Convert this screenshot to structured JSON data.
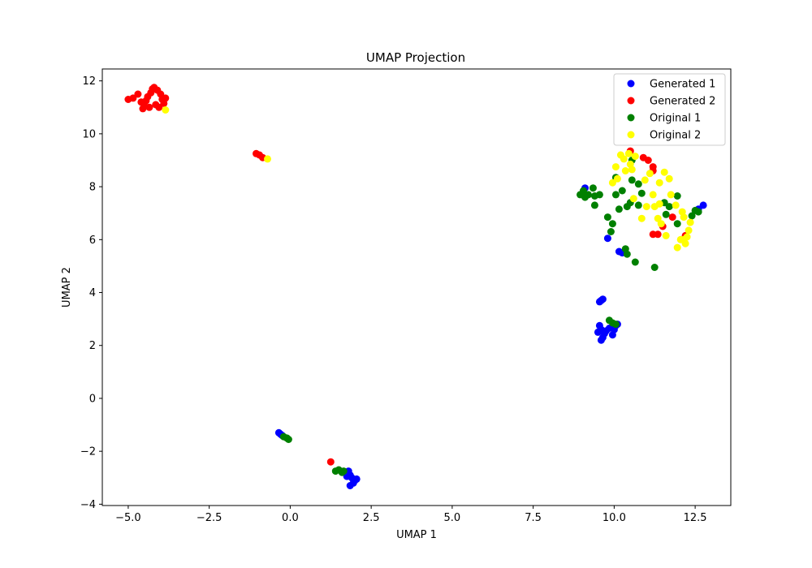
{
  "chart_data": {
    "type": "scatter",
    "title": "UMAP Projection",
    "xlabel": "UMAP 1",
    "ylabel": "UMAP 2",
    "xlim": [
      -5.8,
      13.6
    ],
    "ylim": [
      -4.05,
      12.45
    ],
    "xticks": [
      -5.0,
      -2.5,
      0.0,
      2.5,
      5.0,
      7.5,
      10.0,
      12.5
    ],
    "xtick_labels": [
      "−5.0",
      "−2.5",
      "0.0",
      "2.5",
      "5.0",
      "7.5",
      "10.0",
      "12.5"
    ],
    "yticks": [
      -4,
      -2,
      0,
      2,
      4,
      6,
      8,
      10,
      12
    ],
    "ytick_labels": [
      "−4",
      "−2",
      "0",
      "2",
      "4",
      "6",
      "8",
      "10",
      "12"
    ],
    "grid": false,
    "legend_position": "top-right",
    "series": [
      {
        "name": "Generated 1",
        "color": "#0000ff",
        "points": [
          [
            -0.35,
            -1.3
          ],
          [
            -0.3,
            -1.35
          ],
          [
            -0.25,
            -1.4
          ],
          [
            1.7,
            -2.8
          ],
          [
            1.8,
            -2.75
          ],
          [
            1.85,
            -2.9
          ],
          [
            1.9,
            -3.0
          ],
          [
            1.75,
            -2.95
          ],
          [
            2.0,
            -3.1
          ],
          [
            1.95,
            -3.2
          ],
          [
            1.85,
            -3.3
          ],
          [
            2.05,
            -3.05
          ],
          [
            1.8,
            -2.85
          ],
          [
            9.55,
            3.65
          ],
          [
            9.6,
            3.7
          ],
          [
            9.65,
            3.75
          ],
          [
            9.55,
            2.75
          ],
          [
            9.6,
            2.6
          ],
          [
            9.5,
            2.5
          ],
          [
            9.65,
            2.3
          ],
          [
            9.6,
            2.2
          ],
          [
            9.75,
            2.55
          ],
          [
            9.85,
            2.65
          ],
          [
            9.95,
            2.4
          ],
          [
            10.0,
            2.6
          ],
          [
            10.05,
            2.75
          ],
          [
            10.1,
            2.8
          ],
          [
            9.7,
            2.45
          ],
          [
            9.1,
            7.95
          ],
          [
            9.8,
            6.05
          ],
          [
            10.15,
            5.55
          ],
          [
            10.25,
            5.5
          ],
          [
            12.75,
            7.3
          ],
          [
            12.6,
            7.15
          ]
        ]
      },
      {
        "name": "Generated 2",
        "color": "#ff0000",
        "points": [
          [
            -5.0,
            11.3
          ],
          [
            -4.85,
            11.35
          ],
          [
            -4.7,
            11.5
          ],
          [
            -4.6,
            11.2
          ],
          [
            -4.5,
            11.05
          ],
          [
            -4.4,
            11.4
          ],
          [
            -4.3,
            11.55
          ],
          [
            -4.25,
            11.7
          ],
          [
            -4.2,
            11.75
          ],
          [
            -4.1,
            11.65
          ],
          [
            -4.0,
            11.5
          ],
          [
            -3.95,
            11.3
          ],
          [
            -3.85,
            11.35
          ],
          [
            -4.15,
            11.1
          ],
          [
            -4.35,
            11.0
          ],
          [
            -4.55,
            10.95
          ],
          [
            -4.45,
            11.25
          ],
          [
            -4.05,
            11.0
          ],
          [
            -3.9,
            11.15
          ],
          [
            -1.05,
            9.25
          ],
          [
            -0.95,
            9.2
          ],
          [
            -0.85,
            9.1
          ],
          [
            1.25,
            -2.4
          ],
          [
            10.5,
            9.35
          ],
          [
            10.9,
            9.1
          ],
          [
            11.05,
            9.0
          ],
          [
            11.2,
            8.75
          ],
          [
            11.2,
            8.6
          ],
          [
            11.2,
            6.2
          ],
          [
            11.35,
            6.2
          ],
          [
            11.5,
            6.5
          ],
          [
            11.8,
            6.85
          ],
          [
            12.2,
            6.15
          ]
        ]
      },
      {
        "name": "Original 1",
        "color": "#008000",
        "points": [
          [
            -0.2,
            -1.45
          ],
          [
            -0.1,
            -1.5
          ],
          [
            -0.05,
            -1.55
          ],
          [
            1.4,
            -2.75
          ],
          [
            1.5,
            -2.7
          ],
          [
            1.6,
            -2.8
          ],
          [
            1.65,
            -2.75
          ],
          [
            9.85,
            2.95
          ],
          [
            9.95,
            2.85
          ],
          [
            10.05,
            2.8
          ],
          [
            8.95,
            7.7
          ],
          [
            9.05,
            7.85
          ],
          [
            9.1,
            7.6
          ],
          [
            9.2,
            7.7
          ],
          [
            9.35,
            7.95
          ],
          [
            9.4,
            7.65
          ],
          [
            9.55,
            7.7
          ],
          [
            9.4,
            7.3
          ],
          [
            9.8,
            6.85
          ],
          [
            9.95,
            6.6
          ],
          [
            9.9,
            6.3
          ],
          [
            10.05,
            8.35
          ],
          [
            10.05,
            7.7
          ],
          [
            10.15,
            7.15
          ],
          [
            10.25,
            7.85
          ],
          [
            10.35,
            5.65
          ],
          [
            10.4,
            5.45
          ],
          [
            10.4,
            7.25
          ],
          [
            10.5,
            7.4
          ],
          [
            10.55,
            9.0
          ],
          [
            10.55,
            8.25
          ],
          [
            10.65,
            5.15
          ],
          [
            10.75,
            8.1
          ],
          [
            10.75,
            7.3
          ],
          [
            10.85,
            7.75
          ],
          [
            11.25,
            4.95
          ],
          [
            11.55,
            7.4
          ],
          [
            11.6,
            6.95
          ],
          [
            11.7,
            7.25
          ],
          [
            11.95,
            6.6
          ],
          [
            11.95,
            7.65
          ],
          [
            12.4,
            6.9
          ],
          [
            12.5,
            7.1
          ],
          [
            12.6,
            7.05
          ]
        ]
      },
      {
        "name": "Original 2",
        "color": "#ffff00",
        "points": [
          [
            -3.85,
            10.9
          ],
          [
            -0.7,
            9.05
          ],
          [
            9.95,
            8.15
          ],
          [
            10.05,
            8.75
          ],
          [
            10.1,
            8.3
          ],
          [
            10.2,
            9.2
          ],
          [
            10.3,
            9.05
          ],
          [
            10.35,
            8.6
          ],
          [
            10.45,
            9.25
          ],
          [
            10.5,
            8.85
          ],
          [
            10.55,
            8.65
          ],
          [
            10.6,
            7.55
          ],
          [
            10.65,
            9.15
          ],
          [
            10.85,
            6.8
          ],
          [
            10.95,
            8.25
          ],
          [
            11.0,
            7.25
          ],
          [
            11.1,
            8.5
          ],
          [
            11.2,
            7.7
          ],
          [
            11.25,
            7.25
          ],
          [
            11.35,
            6.8
          ],
          [
            11.4,
            8.15
          ],
          [
            11.45,
            6.6
          ],
          [
            11.55,
            8.55
          ],
          [
            11.6,
            6.15
          ],
          [
            11.7,
            8.3
          ],
          [
            11.75,
            7.7
          ],
          [
            11.9,
            7.3
          ],
          [
            11.95,
            5.7
          ],
          [
            12.05,
            6.0
          ],
          [
            12.1,
            7.05
          ],
          [
            12.15,
            6.85
          ],
          [
            12.2,
            5.85
          ],
          [
            12.25,
            6.1
          ],
          [
            12.3,
            6.35
          ],
          [
            12.35,
            6.65
          ],
          [
            12.15,
            6.0
          ],
          [
            11.4,
            7.35
          ]
        ]
      }
    ]
  }
}
